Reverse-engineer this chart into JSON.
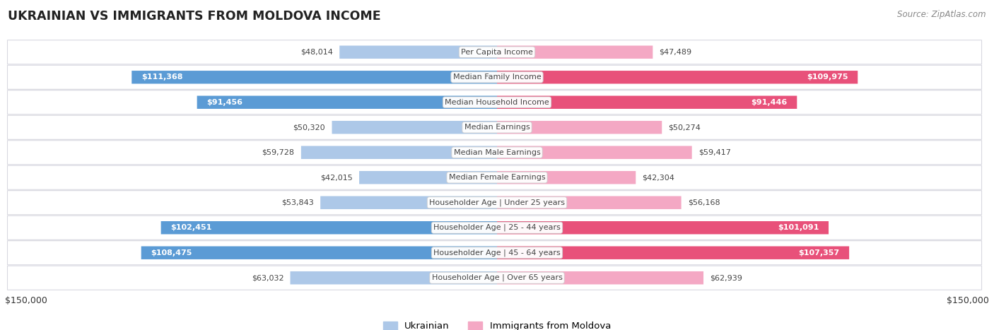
{
  "title": "UKRAINIAN VS IMMIGRANTS FROM MOLDOVA INCOME",
  "source": "Source: ZipAtlas.com",
  "categories": [
    "Per Capita Income",
    "Median Family Income",
    "Median Household Income",
    "Median Earnings",
    "Median Male Earnings",
    "Median Female Earnings",
    "Householder Age | Under 25 years",
    "Householder Age | 25 - 44 years",
    "Householder Age | 45 - 64 years",
    "Householder Age | Over 65 years"
  ],
  "ukrainian_values": [
    48014,
    111368,
    91456,
    50320,
    59728,
    42015,
    53843,
    102451,
    108475,
    63032
  ],
  "moldova_values": [
    47489,
    109975,
    91446,
    50274,
    59417,
    42304,
    56168,
    101091,
    107357,
    62939
  ],
  "ukrainian_labels": [
    "$48,014",
    "$111,368",
    "$91,456",
    "$50,320",
    "$59,728",
    "$42,015",
    "$53,843",
    "$102,451",
    "$108,475",
    "$63,032"
  ],
  "moldova_labels": [
    "$47,489",
    "$109,975",
    "$91,446",
    "$50,274",
    "$59,417",
    "$42,304",
    "$56,168",
    "$101,091",
    "$107,357",
    "$62,939"
  ],
  "ukr_color_light": "#adc8e8",
  "ukr_color_dark": "#5b9bd5",
  "mol_color_light": "#f4a8c4",
  "mol_color_dark": "#e8517a",
  "max_value": 150000,
  "bar_height": 0.52,
  "legend_ukrainian": "Ukrainian",
  "legend_moldova": "Immigrants from Moldova",
  "axis_label_left": "$150,000",
  "axis_label_right": "$150,000",
  "ukr_threshold": 70000,
  "mol_threshold": 70000,
  "row_bg": "#f5f5f7",
  "row_border": "#d8d8e0"
}
